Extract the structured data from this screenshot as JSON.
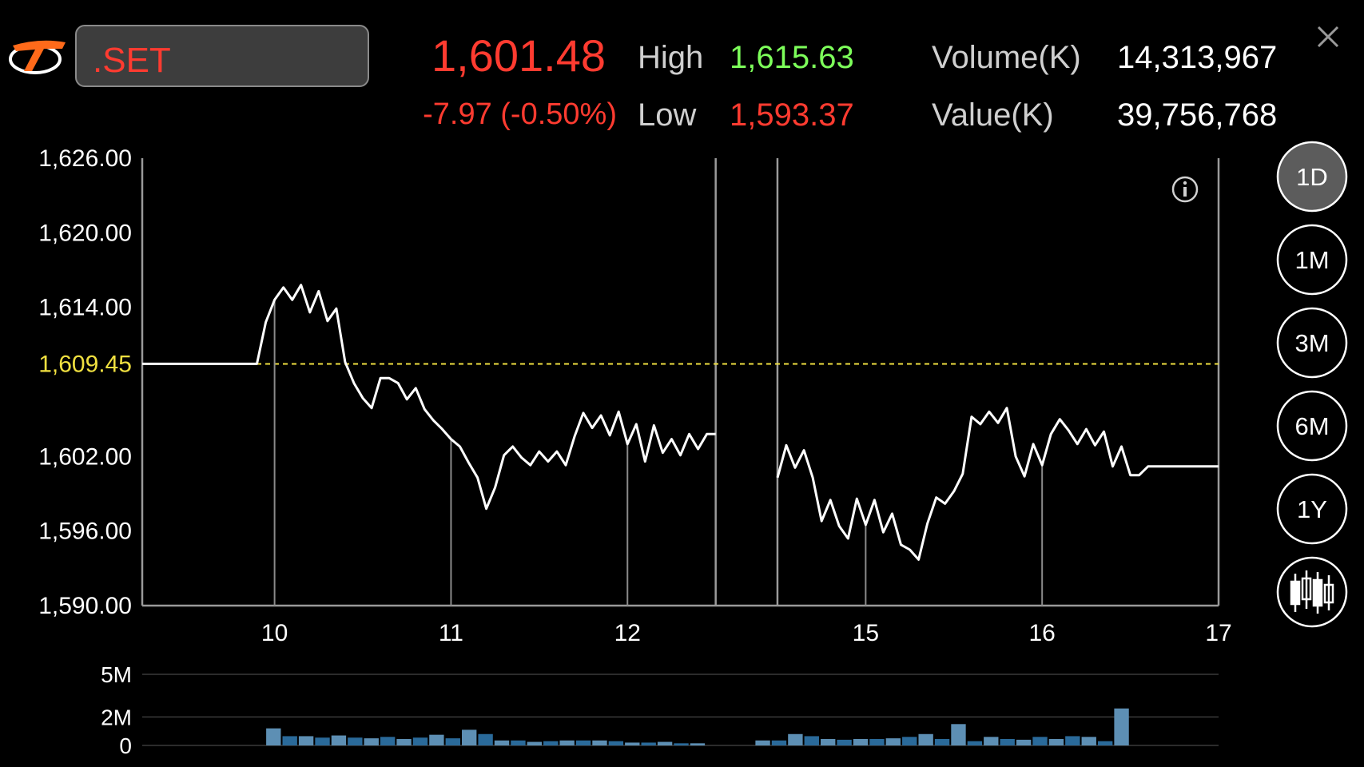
{
  "header": {
    "symbol": ".SET",
    "last_price": "1,601.48",
    "change": "-7.97 (-0.50%)",
    "high_label": "High",
    "high_value": "1,615.63",
    "low_label": "Low",
    "low_value": "1,593.37",
    "volume_label": "Volume(K)",
    "volume_value": "14,313,967",
    "value_label": "Value(K)",
    "value_value": "39,756,768"
  },
  "colors": {
    "down": "#ff3b30",
    "up": "#7dff5a",
    "reference": "#f0e040",
    "line": "#ffffff",
    "volume_dark": "#2a6a9a",
    "volume_light": "#5d8fb4"
  },
  "timeframes": [
    "1D",
    "1M",
    "3M",
    "6M",
    "1Y"
  ],
  "active_timeframe": "1D",
  "icons": {
    "logo": "settrade-logo-icon",
    "info": "info-icon",
    "close": "close-icon",
    "candlestick": "candlestick-icon"
  },
  "chart_data": [
    {
      "type": "line",
      "y_ticks": [
        "1,626.00",
        "1,620.00",
        "1,614.00",
        "1,602.00",
        "1,596.00",
        "1,590.00"
      ],
      "y_tick_values": [
        1626,
        1620,
        1614,
        1602,
        1596,
        1590
      ],
      "reference_label": "1,609.45",
      "reference_value": 1609.45,
      "ylim": [
        1590,
        1626
      ],
      "x_tick_labels": [
        "10",
        "11",
        "12",
        "15",
        "16",
        "17"
      ],
      "x_tick_index": [
        15,
        35,
        55,
        82,
        102,
        122
      ],
      "gap_after_index": 65,
      "gap_before_index": 72,
      "session_breaks": [
        65,
        72
      ],
      "grid": false,
      "values": [
        1609.45,
        1609.45,
        1609.45,
        1609.45,
        1609.45,
        1609.45,
        1609.45,
        1609.45,
        1609.45,
        1609.45,
        1609.45,
        1609.45,
        1609.45,
        1609.45,
        1612.8,
        1614.6,
        1615.6,
        1614.6,
        1615.8,
        1613.6,
        1615.3,
        1612.9,
        1613.9,
        1609.6,
        1607.9,
        1606.7,
        1605.9,
        1608.3,
        1608.3,
        1607.9,
        1606.6,
        1607.5,
        1605.8,
        1604.9,
        1604.2,
        1603.4,
        1602.8,
        1601.5,
        1600.3,
        1597.8,
        1599.5,
        1602.1,
        1602.8,
        1601.9,
        1601.3,
        1602.4,
        1601.6,
        1602.4,
        1601.3,
        1603.6,
        1605.5,
        1604.3,
        1605.3,
        1603.7,
        1605.6,
        1603.0,
        1604.6,
        1601.6,
        1604.5,
        1602.3,
        1603.4,
        1602.1,
        1603.8,
        1602.6,
        1603.8,
        1603.8,
        null,
        null,
        null,
        null,
        null,
        null,
        1600.3,
        1602.9,
        1601.1,
        1602.5,
        1600.3,
        1596.8,
        1598.5,
        1596.4,
        1595.4,
        1598.6,
        1596.5,
        1598.5,
        1595.9,
        1597.4,
        1594.9,
        1594.5,
        1593.7,
        1596.6,
        1598.7,
        1598.2,
        1599.2,
        1600.6,
        1605.2,
        1604.6,
        1605.6,
        1604.7,
        1605.9,
        1602.0,
        1600.4,
        1603.0,
        1601.3,
        1603.8,
        1605.0,
        1604.1,
        1603.0,
        1604.2,
        1602.9,
        1604.0,
        1601.2,
        1602.8,
        1600.5,
        1600.5,
        1601.2,
        1601.2,
        1601.2,
        1601.2,
        1601.2,
        1601.2,
        1601.2,
        1601.2,
        1601.2
      ]
    },
    {
      "type": "bar",
      "y_ticks": [
        "5M",
        "2M",
        "0"
      ],
      "y_tick_values": [
        5,
        2,
        0
      ],
      "ylim": [
        0,
        5
      ],
      "unit": "M",
      "values": [
        0,
        0,
        0,
        0,
        0,
        0,
        0,
        1.2,
        0.65,
        0.65,
        0.55,
        0.7,
        0.55,
        0.5,
        0.6,
        0.45,
        0.55,
        0.75,
        0.5,
        1.1,
        0.8,
        0.35,
        0.35,
        0.25,
        0.3,
        0.35,
        0.35,
        0.35,
        0.3,
        0.2,
        0.2,
        0.25,
        0.15,
        0.15,
        0,
        0,
        0,
        0.35,
        0.35,
        0.8,
        0.65,
        0.45,
        0.4,
        0.45,
        0.45,
        0.5,
        0.6,
        0.8,
        0.45,
        1.5,
        0.3,
        0.6,
        0.45,
        0.4,
        0.6,
        0.45,
        0.65,
        0.6,
        0.3,
        2.6
      ]
    }
  ]
}
